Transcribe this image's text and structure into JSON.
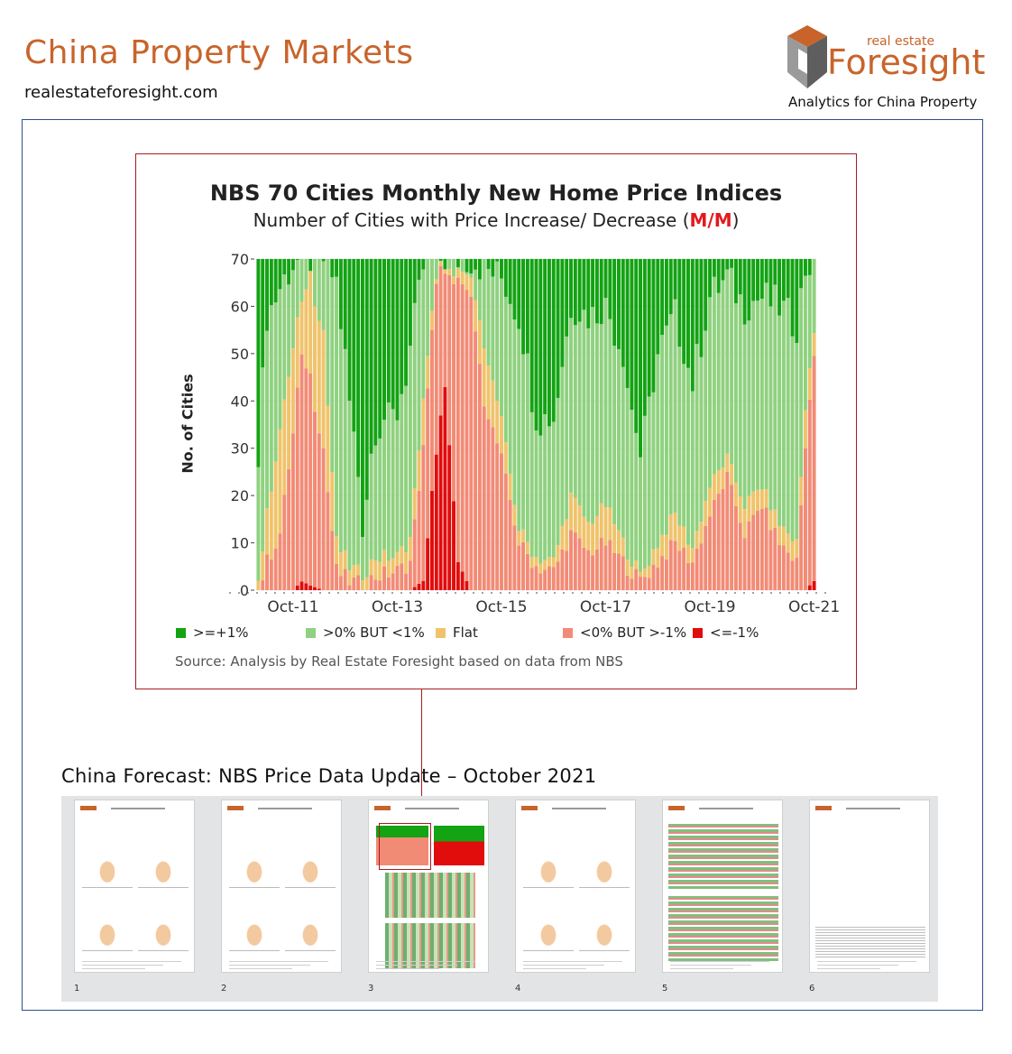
{
  "header": {
    "site_title": "China Property Markets",
    "site_url": "realestateforesight.com",
    "logo_small_text": "real estate",
    "logo_brand": "Foresight",
    "tagline": "Analytics for China Property"
  },
  "colors": {
    "brand_orange": "#c8642b",
    "frame_blue": "#2f4e8f",
    "frame_red": "#a51c22",
    "dark_green": "#13a313",
    "light_green": "#8fd17f",
    "flat": "#f0c36b",
    "light_red": "#f28b76",
    "red": "#e10c0c"
  },
  "chart_data": {
    "type": "bar",
    "stacked": true,
    "title": "NBS 70 Cities Monthly New Home Price Indices",
    "subtitle_prefix": "Number of Cities with Price Increase/ Decrease (",
    "subtitle_emph": "M/M",
    "subtitle_suffix": ")",
    "ylabel": "No. of Cities",
    "xlabel": "",
    "ylim": [
      0,
      70
    ],
    "yticks": [
      "70",
      "60",
      "50",
      "40",
      "30",
      "20",
      "10",
      "0"
    ],
    "xticks": [
      "Oct-11",
      "Oct-13",
      "Oct-15",
      "Oct-17",
      "Oct-19",
      "Oct-21"
    ],
    "x_start": "Feb-11",
    "x_end": "Oct-21",
    "series": [
      {
        "name": ">=+1%",
        "color": "#13a313"
      },
      {
        "name": ">0% BUT <1%",
        "color": "#8fd17f"
      },
      {
        "name": "Flat",
        "color": "#f0c36b"
      },
      {
        "name": "<0% BUT >-1%",
        "color": "#f28b76"
      },
      {
        "name": "<=-1%",
        "color": "#e10c0c"
      }
    ],
    "keypoints": [
      {
        "date": "Feb-11",
        "strong_down": 0,
        "down": 0,
        "flat": 2,
        "up_small": 28,
        "up_strong": 40
      },
      {
        "date": "Apr-11",
        "strong_down": 0,
        "down": 6,
        "flat": 10,
        "up_small": 42,
        "up_strong": 12
      },
      {
        "date": "Jul-11",
        "strong_down": 0,
        "down": 12,
        "flat": 22,
        "up_small": 30,
        "up_strong": 6
      },
      {
        "date": "Oct-11",
        "strong_down": 0,
        "down": 33,
        "flat": 18,
        "up_small": 18,
        "up_strong": 1
      },
      {
        "date": "Dec-11",
        "strong_down": 2,
        "down": 50,
        "flat": 12,
        "up_small": 6,
        "up_strong": 0
      },
      {
        "date": "Feb-12",
        "strong_down": 1,
        "down": 45,
        "flat": 22,
        "up_small": 2,
        "up_strong": 0
      },
      {
        "date": "May-12",
        "strong_down": 0,
        "down": 30,
        "flat": 25,
        "up_small": 15,
        "up_strong": 0
      },
      {
        "date": "Aug-12",
        "strong_down": 0,
        "down": 4,
        "flat": 6,
        "up_small": 55,
        "up_strong": 5
      },
      {
        "date": "Nov-12",
        "strong_down": 0,
        "down": 2,
        "flat": 3,
        "up_small": 35,
        "up_strong": 30
      },
      {
        "date": "Feb-13",
        "strong_down": 0,
        "down": 1,
        "flat": 2,
        "up_small": 12,
        "up_strong": 55
      },
      {
        "date": "May-13",
        "strong_down": 0,
        "down": 3,
        "flat": 4,
        "up_small": 28,
        "up_strong": 35
      },
      {
        "date": "Oct-13",
        "strong_down": 0,
        "down": 4,
        "flat": 3,
        "up_small": 30,
        "up_strong": 33
      },
      {
        "date": "Jan-14",
        "strong_down": 0,
        "down": 6,
        "flat": 5,
        "up_small": 40,
        "up_strong": 19
      },
      {
        "date": "Apr-14",
        "strong_down": 2,
        "down": 28,
        "flat": 10,
        "up_small": 28,
        "up_strong": 2
      },
      {
        "date": "Jul-14",
        "strong_down": 30,
        "down": 38,
        "flat": 1,
        "up_small": 1,
        "up_strong": 0
      },
      {
        "date": "Sep-14",
        "strong_down": 45,
        "down": 24,
        "flat": 1,
        "up_small": 0,
        "up_strong": 0
      },
      {
        "date": "Dec-14",
        "strong_down": 6,
        "down": 60,
        "flat": 2,
        "up_small": 2,
        "up_strong": 0
      },
      {
        "date": "Mar-15",
        "strong_down": 0,
        "down": 62,
        "flat": 4,
        "up_small": 4,
        "up_strong": 0
      },
      {
        "date": "Jun-15",
        "strong_down": 0,
        "down": 40,
        "flat": 12,
        "up_small": 16,
        "up_strong": 2
      },
      {
        "date": "Oct-15",
        "strong_down": 0,
        "down": 28,
        "flat": 8,
        "up_small": 30,
        "up_strong": 4
      },
      {
        "date": "Feb-16",
        "strong_down": 0,
        "down": 10,
        "flat": 3,
        "up_small": 45,
        "up_strong": 12
      },
      {
        "date": "Jun-16",
        "strong_down": 0,
        "down": 5,
        "flat": 2,
        "up_small": 30,
        "up_strong": 33
      },
      {
        "date": "Oct-16",
        "strong_down": 0,
        "down": 4,
        "flat": 2,
        "up_small": 30,
        "up_strong": 34
      },
      {
        "date": "Feb-17",
        "strong_down": 0,
        "down": 12,
        "flat": 8,
        "up_small": 40,
        "up_strong": 10
      },
      {
        "date": "Jun-17",
        "strong_down": 0,
        "down": 8,
        "flat": 6,
        "up_small": 44,
        "up_strong": 12
      },
      {
        "date": "Oct-17",
        "strong_down": 0,
        "down": 10,
        "flat": 8,
        "up_small": 42,
        "up_strong": 10
      },
      {
        "date": "Feb-18",
        "strong_down": 0,
        "down": 6,
        "flat": 4,
        "up_small": 40,
        "up_strong": 20
      },
      {
        "date": "Jun-18",
        "strong_down": 0,
        "down": 2,
        "flat": 1,
        "up_small": 25,
        "up_strong": 42
      },
      {
        "date": "Oct-18",
        "strong_down": 0,
        "down": 6,
        "flat": 4,
        "up_small": 40,
        "up_strong": 20
      },
      {
        "date": "Feb-19",
        "strong_down": 0,
        "down": 10,
        "flat": 6,
        "up_small": 42,
        "up_strong": 12
      },
      {
        "date": "Jun-19",
        "strong_down": 0,
        "down": 6,
        "flat": 3,
        "up_small": 35,
        "up_strong": 26
      },
      {
        "date": "Oct-19",
        "strong_down": 0,
        "down": 16,
        "flat": 6,
        "up_small": 40,
        "up_strong": 8
      },
      {
        "date": "Feb-20",
        "strong_down": 0,
        "down": 24,
        "flat": 4,
        "up_small": 38,
        "up_strong": 4
      },
      {
        "date": "Jun-20",
        "strong_down": 0,
        "down": 12,
        "flat": 6,
        "up_small": 42,
        "up_strong": 10
      },
      {
        "date": "Oct-20",
        "strong_down": 0,
        "down": 18,
        "flat": 4,
        "up_small": 40,
        "up_strong": 8
      },
      {
        "date": "Feb-21",
        "strong_down": 0,
        "down": 10,
        "flat": 4,
        "up_small": 46,
        "up_strong": 10
      },
      {
        "date": "Jun-21",
        "strong_down": 0,
        "down": 6,
        "flat": 4,
        "up_small": 46,
        "up_strong": 14
      },
      {
        "date": "Aug-21",
        "strong_down": 0,
        "down": 30,
        "flat": 8,
        "up_small": 30,
        "up_strong": 2
      },
      {
        "date": "Oct-21",
        "strong_down": 2,
        "down": 50,
        "flat": 5,
        "up_small": 13,
        "up_strong": 0
      }
    ],
    "legend_position": "bottom",
    "grid": true,
    "source": "Source: Analysis by Real Estate Foresight based on data from NBS"
  },
  "report": {
    "title": "China Forecast: NBS Price Data Update – October  2021",
    "pages": [
      "1",
      "2",
      "3",
      "4",
      "5",
      "6"
    ]
  }
}
